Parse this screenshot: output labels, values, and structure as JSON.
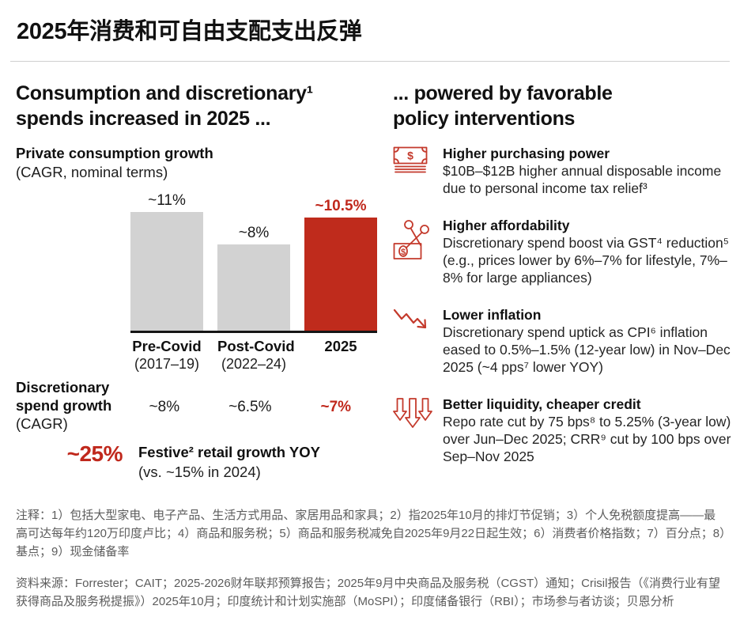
{
  "page_title": "2025年消费和可自由支配支出反弹",
  "left": {
    "heading": "Consumption and discretionary¹\nspends increased in 2025 ...",
    "chart_title": "Private consumption growth",
    "chart_subtitle": "(CAGR, nominal terms)",
    "discretionary": {
      "label_line1": "Discretionary",
      "label_line2": "spend growth",
      "label_line3": "(CAGR)",
      "values": [
        "~8%",
        "~6.5%",
        "~7%"
      ]
    },
    "festive": {
      "value": "~25%",
      "label": "Festive² retail growth YOY",
      "sublabel": "(vs. ~15% in 2024)"
    }
  },
  "right": {
    "heading": "... powered by favorable\npolicy interventions",
    "items": [
      {
        "icon": "banknote-stack-icon",
        "title": "Higher purchasing power",
        "body": "$10B–$12B higher annual disposable income due to personal income tax relief³"
      },
      {
        "icon": "scissors-price-cut-icon",
        "title": "Higher affordability",
        "body": "Discretionary spend boost via GST⁴ reduction⁵ (e.g., prices lower by 6%–7% for lifestyle, 7%–8% for large appliances)"
      },
      {
        "icon": "downward-zigzag-arrow-icon",
        "title": "Lower inflation",
        "body": "Discretionary spend uptick as CPI⁶ inflation eased to 0.5%–1.5% (12-year low) in Nov–Dec 2025 (~4 pps⁷ lower YOY)"
      },
      {
        "icon": "triple-down-arrows-icon",
        "title": "Better liquidity, cheaper credit",
        "body": "Repo rate cut by 75 bps⁸ to 5.25% (3-year low) over Jun–Dec 2025; CRR⁹ cut by 100 bps over Sep–Nov 2025"
      }
    ]
  },
  "chart_data": {
    "type": "bar",
    "title": "Private consumption growth",
    "subtitle": "(CAGR, nominal terms)",
    "categories": [
      {
        "line1": "Pre-Covid",
        "line2": "(2017–19)"
      },
      {
        "line1": "Post-Covid",
        "line2": "(2022–24)"
      },
      {
        "line1": "2025",
        "line2": ""
      }
    ],
    "values": [
      11,
      8,
      10.5
    ],
    "value_labels": [
      "~11%",
      "~8%",
      "~10.5%"
    ],
    "bar_colors": [
      "#d2d2d2",
      "#d2d2d2",
      "#bf2b1c"
    ],
    "value_label_emphasis": [
      false,
      false,
      true
    ],
    "ylim": [
      0,
      12
    ],
    "xlabel": "",
    "ylabel": "Private consumption growth (CAGR, nominal terms)",
    "grid": false,
    "legend": "none",
    "secondary_row": {
      "label": "Discretionary spend growth (CAGR)",
      "values": [
        "~8%",
        "~6.5%",
        "~7%"
      ]
    },
    "callout": {
      "value": "~25%",
      "label": "Festive retail growth YOY (vs. ~15% in 2024)"
    }
  },
  "footnotes": "注释：1）包括大型家电、电子产品、生活方式用品、家居用品和家具；2）指2025年10月的排灯节促销；3）个人免税额度提高——最高可达每年约120万印度卢比；4）商品和服务税；5）商品和服务税减免自2025年9月22日起生效；6）消费者价格指数；7）百分点；8）基点；9）现金储备率",
  "source": "资料来源：Forrester；CAIT；2025-2026财年联邦预算报告；2025年9月中央商品及服务税（CGST）通知；Crisil报告（《消费行业有望获得商品及服务税提振》）2025年10月；印度统计和计划实施部（MoSPI）；印度储备银行（RBI）；市场参与者访谈；贝恩分析",
  "colors": {
    "accent_red_text": "#c0281c",
    "bar_red": "#bf2b1c",
    "bar_gray": "#d2d2d2",
    "icon_red": "#c43a2c",
    "text_black": "#111111",
    "muted_gray": "#5c5c5c"
  }
}
